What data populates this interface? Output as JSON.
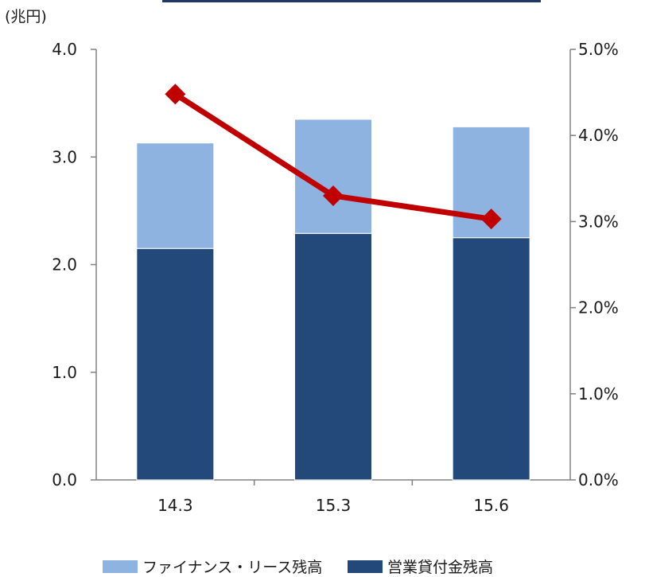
{
  "chart_data": {
    "type": "bar",
    "stacked": true,
    "categories": [
      "14.3",
      "15.3",
      "15.6"
    ],
    "series": [
      {
        "name": "営業貸付金残高",
        "kind": "bar",
        "axis": "left",
        "color": "#22497a",
        "values": [
          2.15,
          2.29,
          2.25
        ]
      },
      {
        "name": "ファイナンス・リース残高",
        "kind": "bar",
        "axis": "left",
        "color": "#8fb3e0",
        "values": [
          0.98,
          1.06,
          1.03
        ]
      },
      {
        "kind": "line",
        "axis": "right",
        "color": "#c00000",
        "values": [
          4.48,
          3.3,
          3.03
        ]
      }
    ],
    "y_left": {
      "unit_label": "(兆円)",
      "ylim": [
        0,
        4.0
      ],
      "ticks": [
        0.0,
        1.0,
        2.0,
        3.0,
        4.0
      ],
      "tick_labels": [
        "0.0",
        "1.0",
        "2.0",
        "3.0",
        "4.0"
      ]
    },
    "y_right": {
      "ylim": [
        0,
        5.0
      ],
      "ticks": [
        0.0,
        1.0,
        2.0,
        3.0,
        4.0,
        5.0
      ],
      "tick_labels": [
        "0.0%",
        "1.0%",
        "2.0%",
        "3.0%",
        "4.0%",
        "5.0%"
      ]
    },
    "grid": false,
    "legend": {
      "placement": "bottom",
      "order": [
        "ファイナンス・リース残高",
        "営業貸付金残高"
      ]
    },
    "colors": {
      "axis": "#808080",
      "frame_top": "#1f3864",
      "text": "#1a1a1a"
    }
  }
}
